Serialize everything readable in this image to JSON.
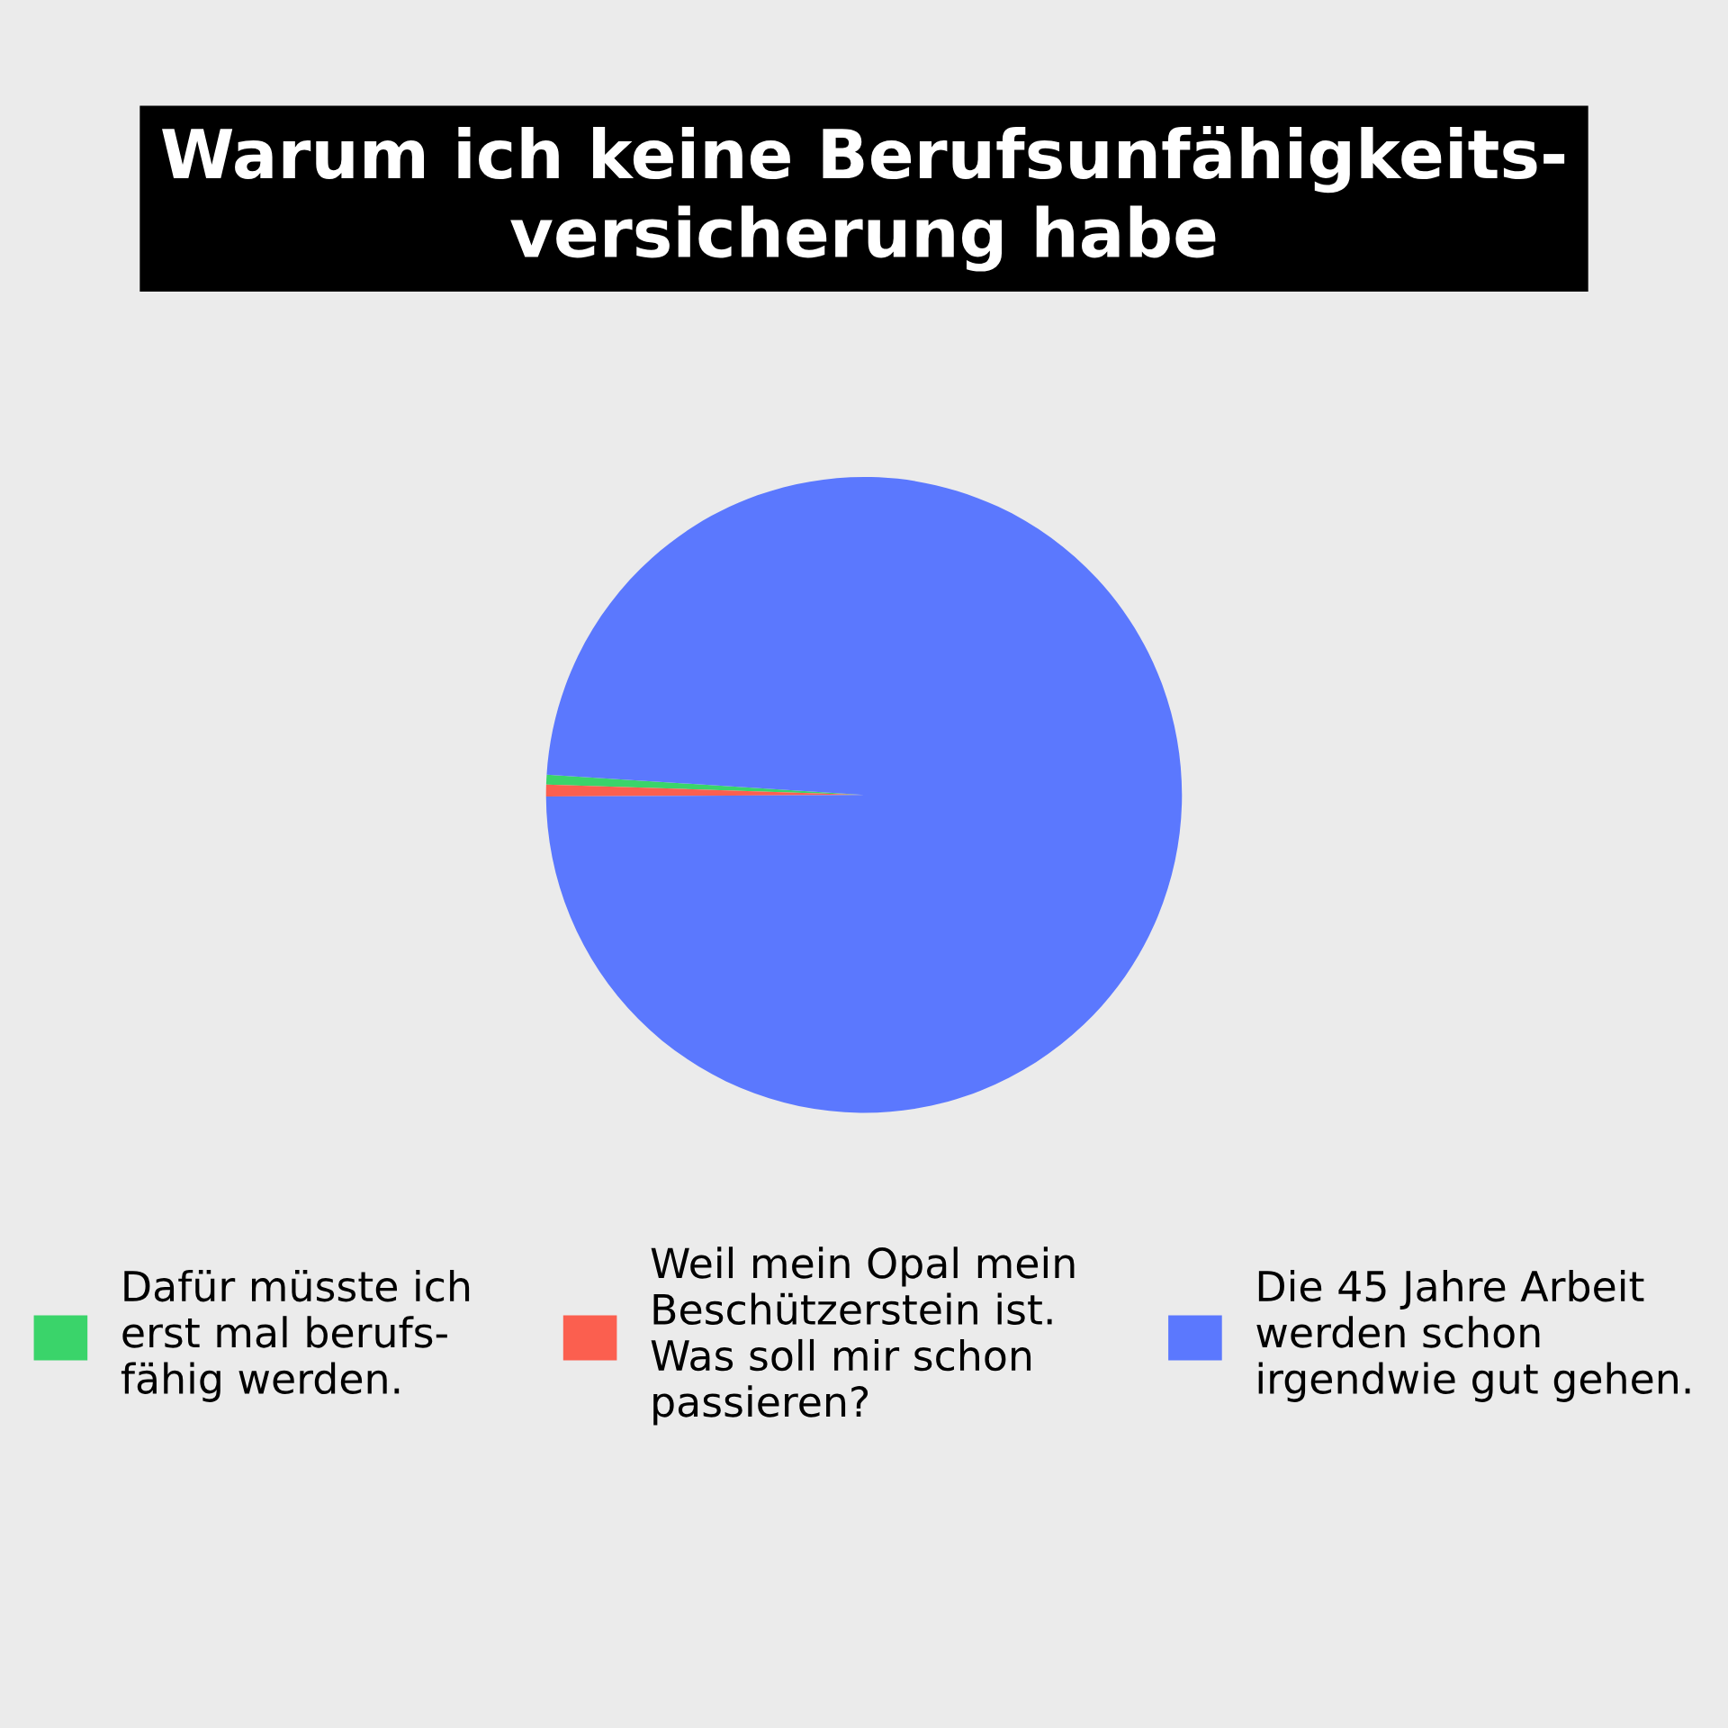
{
  "chart_data": {
    "type": "pie",
    "title": "Warum ich keine Berufsunfähigkeits-\nversicherung habe",
    "categories": [
      "Dafür müsste ich\nerst mal berufs-\nfähig werden.",
      "Weil mein Opal mein\nBeschützerstein ist.\nWas soll mir schon\npassieren?",
      "Die 45 Jahre Arbeit\nwerden schon\nirgendwie gut gehen."
    ],
    "values": [
      0.5,
      0.6,
      98.9
    ],
    "colors": [
      "#3ad46a",
      "#fb5f4f",
      "#5b78fe"
    ],
    "legend": "bottom"
  }
}
